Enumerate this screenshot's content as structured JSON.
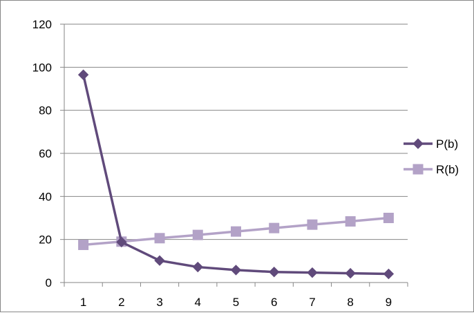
{
  "chart_data": {
    "type": "line",
    "x": [
      "1",
      "2",
      "3",
      "4",
      "5",
      "6",
      "7",
      "8",
      "9"
    ],
    "ylim": [
      0,
      120
    ],
    "yticks": [
      0,
      20,
      40,
      60,
      80,
      100,
      120
    ],
    "grid": "horizontal",
    "legend_position": "right",
    "series": [
      {
        "name": "P(b)",
        "marker": "diamond",
        "color": "#604a7b",
        "values": [
          96.5,
          18.8,
          10.2,
          7.2,
          5.8,
          4.9,
          4.6,
          4.3,
          4.0
        ]
      },
      {
        "name": "R(b)",
        "marker": "square",
        "color": "#b3a2c7",
        "values": [
          17.5,
          19.0,
          20.6,
          22.1,
          23.7,
          25.3,
          26.9,
          28.4,
          30.0
        ]
      }
    ]
  }
}
